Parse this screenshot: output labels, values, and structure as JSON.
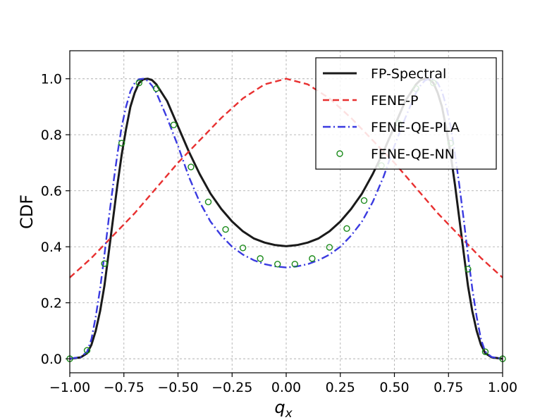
{
  "chart_data": {
    "type": "line",
    "xlabel": "q_x",
    "ylabel": "CDF",
    "xlim": [
      -1.0,
      1.0
    ],
    "ylim": [
      -0.05,
      1.1
    ],
    "grid": true,
    "legend_position": "top-right",
    "x_ticks": [
      "−1.00",
      "−0.75",
      "−0.50",
      "−0.25",
      "0.00",
      "0.25",
      "0.50",
      "0.75",
      "1.00"
    ],
    "x_tick_values": [
      -1.0,
      -0.75,
      -0.5,
      -0.25,
      0.0,
      0.25,
      0.5,
      0.75,
      1.0
    ],
    "y_ticks": [
      "0.0",
      "0.2",
      "0.4",
      "0.6",
      "0.8",
      "1.0"
    ],
    "y_tick_values": [
      0.0,
      0.2,
      0.4,
      0.6,
      0.8,
      1.0
    ],
    "series": [
      {
        "name": "FP-Spectral",
        "style": "solid",
        "color": "#1a1a1a",
        "points": [
          [
            -1.0,
            0.0
          ],
          [
            -0.95,
            0.005
          ],
          [
            -0.92,
            0.02
          ],
          [
            -0.9,
            0.05
          ],
          [
            -0.88,
            0.1
          ],
          [
            -0.86,
            0.17
          ],
          [
            -0.84,
            0.26
          ],
          [
            -0.82,
            0.38
          ],
          [
            -0.8,
            0.5
          ],
          [
            -0.78,
            0.62
          ],
          [
            -0.76,
            0.73
          ],
          [
            -0.74,
            0.82
          ],
          [
            -0.72,
            0.9
          ],
          [
            -0.7,
            0.95
          ],
          [
            -0.68,
            0.985
          ],
          [
            -0.66,
            0.998
          ],
          [
            -0.64,
            1.0
          ],
          [
            -0.62,
            0.995
          ],
          [
            -0.6,
            0.98
          ],
          [
            -0.55,
            0.92
          ],
          [
            -0.5,
            0.83
          ],
          [
            -0.45,
            0.74
          ],
          [
            -0.4,
            0.66
          ],
          [
            -0.35,
            0.59
          ],
          [
            -0.3,
            0.535
          ],
          [
            -0.25,
            0.49
          ],
          [
            -0.2,
            0.455
          ],
          [
            -0.15,
            0.43
          ],
          [
            -0.1,
            0.415
          ],
          [
            -0.05,
            0.406
          ],
          [
            0.0,
            0.402
          ],
          [
            0.05,
            0.406
          ],
          [
            0.1,
            0.415
          ],
          [
            0.15,
            0.43
          ],
          [
            0.2,
            0.455
          ],
          [
            0.25,
            0.49
          ],
          [
            0.3,
            0.535
          ],
          [
            0.35,
            0.59
          ],
          [
            0.4,
            0.66
          ],
          [
            0.45,
            0.74
          ],
          [
            0.5,
            0.83
          ],
          [
            0.55,
            0.92
          ],
          [
            0.6,
            0.98
          ],
          [
            0.62,
            0.995
          ],
          [
            0.64,
            1.0
          ],
          [
            0.66,
            0.998
          ],
          [
            0.68,
            0.985
          ],
          [
            0.7,
            0.95
          ],
          [
            0.72,
            0.9
          ],
          [
            0.74,
            0.82
          ],
          [
            0.76,
            0.73
          ],
          [
            0.78,
            0.62
          ],
          [
            0.8,
            0.5
          ],
          [
            0.82,
            0.38
          ],
          [
            0.84,
            0.26
          ],
          [
            0.86,
            0.17
          ],
          [
            0.88,
            0.1
          ],
          [
            0.9,
            0.05
          ],
          [
            0.92,
            0.02
          ],
          [
            0.95,
            0.005
          ],
          [
            1.0,
            0.0
          ]
        ]
      },
      {
        "name": "FENE-P",
        "style": "dashed",
        "color": "#e83030",
        "points": [
          [
            -1.0,
            0.29
          ],
          [
            -0.9,
            0.36
          ],
          [
            -0.8,
            0.44
          ],
          [
            -0.7,
            0.52
          ],
          [
            -0.6,
            0.61
          ],
          [
            -0.5,
            0.7
          ],
          [
            -0.4,
            0.78
          ],
          [
            -0.3,
            0.86
          ],
          [
            -0.2,
            0.93
          ],
          [
            -0.1,
            0.98
          ],
          [
            0.0,
            1.0
          ],
          [
            0.1,
            0.98
          ],
          [
            0.2,
            0.93
          ],
          [
            0.3,
            0.86
          ],
          [
            0.4,
            0.78
          ],
          [
            0.5,
            0.7
          ],
          [
            0.6,
            0.61
          ],
          [
            0.7,
            0.52
          ],
          [
            0.8,
            0.44
          ],
          [
            0.9,
            0.36
          ],
          [
            1.0,
            0.29
          ]
        ]
      },
      {
        "name": "FENE-QE-PLA",
        "style": "dashdot",
        "color": "#3a3ae0",
        "points": [
          [
            -1.0,
            0.0
          ],
          [
            -0.95,
            0.006
          ],
          [
            -0.92,
            0.025
          ],
          [
            -0.9,
            0.07
          ],
          [
            -0.88,
            0.15
          ],
          [
            -0.86,
            0.25
          ],
          [
            -0.84,
            0.37
          ],
          [
            -0.82,
            0.5
          ],
          [
            -0.8,
            0.62
          ],
          [
            -0.78,
            0.73
          ],
          [
            -0.76,
            0.83
          ],
          [
            -0.74,
            0.9
          ],
          [
            -0.72,
            0.955
          ],
          [
            -0.7,
            0.985
          ],
          [
            -0.68,
            0.998
          ],
          [
            -0.66,
            1.0
          ],
          [
            -0.64,
            0.993
          ],
          [
            -0.62,
            0.975
          ],
          [
            -0.6,
            0.95
          ],
          [
            -0.55,
            0.86
          ],
          [
            -0.5,
            0.76
          ],
          [
            -0.45,
            0.65
          ],
          [
            -0.4,
            0.56
          ],
          [
            -0.35,
            0.49
          ],
          [
            -0.3,
            0.44
          ],
          [
            -0.25,
            0.4
          ],
          [
            -0.2,
            0.372
          ],
          [
            -0.15,
            0.352
          ],
          [
            -0.1,
            0.338
          ],
          [
            -0.05,
            0.33
          ],
          [
            0.0,
            0.326
          ],
          [
            0.05,
            0.33
          ],
          [
            0.1,
            0.338
          ],
          [
            0.15,
            0.352
          ],
          [
            0.2,
            0.372
          ],
          [
            0.25,
            0.4
          ],
          [
            0.3,
            0.44
          ],
          [
            0.35,
            0.49
          ],
          [
            0.4,
            0.56
          ],
          [
            0.45,
            0.65
          ],
          [
            0.5,
            0.76
          ],
          [
            0.55,
            0.86
          ],
          [
            0.6,
            0.95
          ],
          [
            0.62,
            0.975
          ],
          [
            0.64,
            0.993
          ],
          [
            0.66,
            1.0
          ],
          [
            0.68,
            0.998
          ],
          [
            0.7,
            0.985
          ],
          [
            0.72,
            0.955
          ],
          [
            0.74,
            0.9
          ],
          [
            0.76,
            0.83
          ],
          [
            0.78,
            0.73
          ],
          [
            0.8,
            0.62
          ],
          [
            0.82,
            0.5
          ],
          [
            0.84,
            0.37
          ],
          [
            0.86,
            0.25
          ],
          [
            0.88,
            0.15
          ],
          [
            0.9,
            0.07
          ],
          [
            0.92,
            0.025
          ],
          [
            0.95,
            0.006
          ],
          [
            1.0,
            0.0
          ]
        ]
      },
      {
        "name": "FENE-QE-NN",
        "style": "markers",
        "color": "#1a8a1a",
        "points": [
          [
            -1.0,
            0.0
          ],
          [
            -0.92,
            0.03
          ],
          [
            -0.84,
            0.34
          ],
          [
            -0.76,
            0.77
          ],
          [
            -0.68,
            0.985
          ],
          [
            -0.6,
            0.965
          ],
          [
            -0.52,
            0.835
          ],
          [
            -0.44,
            0.685
          ],
          [
            -0.36,
            0.56
          ],
          [
            -0.28,
            0.462
          ],
          [
            -0.2,
            0.396
          ],
          [
            -0.12,
            0.358
          ],
          [
            -0.04,
            0.338
          ],
          [
            0.04,
            0.338
          ],
          [
            0.12,
            0.358
          ],
          [
            0.2,
            0.398
          ],
          [
            0.28,
            0.465
          ],
          [
            0.36,
            0.565
          ],
          [
            0.44,
            0.69
          ],
          [
            0.52,
            0.84
          ],
          [
            0.6,
            0.965
          ],
          [
            0.68,
            0.985
          ],
          [
            0.76,
            0.77
          ],
          [
            0.84,
            0.32
          ],
          [
            0.92,
            0.025
          ],
          [
            1.0,
            0.0
          ]
        ]
      }
    ]
  }
}
